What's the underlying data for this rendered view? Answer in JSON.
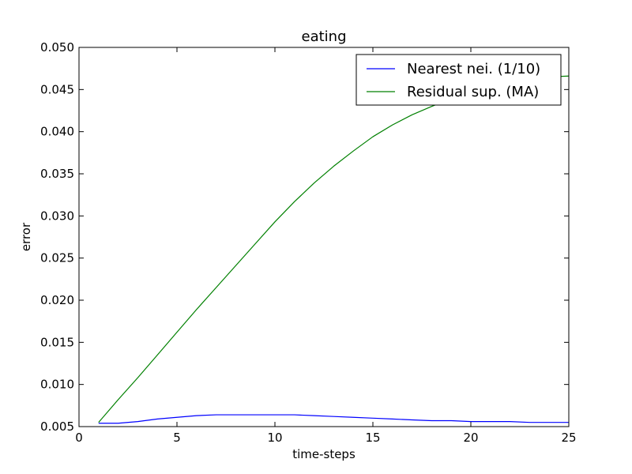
{
  "chart_data": {
    "type": "line",
    "title": "eating",
    "xlabel": "time-steps",
    "ylabel": "error",
    "xlim": [
      0,
      25
    ],
    "ylim": [
      0.005,
      0.05
    ],
    "xticks": [
      0,
      5,
      10,
      15,
      20,
      25
    ],
    "xtick_labels": [
      "0",
      "5",
      "10",
      "15",
      "20",
      "25"
    ],
    "yticks": [
      0.005,
      0.01,
      0.015,
      0.02,
      0.025,
      0.03,
      0.035,
      0.04,
      0.045,
      0.05
    ],
    "ytick_labels": [
      "0.005",
      "0.010",
      "0.015",
      "0.020",
      "0.025",
      "0.030",
      "0.035",
      "0.040",
      "0.045",
      "0.050"
    ],
    "grid": false,
    "legend_position": "top-right",
    "x": [
      1,
      2,
      3,
      4,
      5,
      6,
      7,
      8,
      9,
      10,
      11,
      12,
      13,
      14,
      15,
      16,
      17,
      18,
      19,
      20,
      21,
      22,
      23,
      24,
      25
    ],
    "series": [
      {
        "name": "Nearest nei. (1/10)",
        "color": "#0000ff",
        "values": [
          0.0054,
          0.0054,
          0.0056,
          0.0059,
          0.0061,
          0.0063,
          0.0064,
          0.0064,
          0.0064,
          0.0064,
          0.0064,
          0.0063,
          0.0062,
          0.0061,
          0.006,
          0.0059,
          0.0058,
          0.0057,
          0.0057,
          0.0056,
          0.0056,
          0.0056,
          0.0055,
          0.0055,
          0.0055
        ]
      },
      {
        "name": "Residual sup. (MA)",
        "color": "#008000",
        "values": [
          0.0055,
          0.0082,
          0.0108,
          0.0135,
          0.0162,
          0.0189,
          0.0215,
          0.0241,
          0.0267,
          0.0293,
          0.0317,
          0.0339,
          0.0359,
          0.0377,
          0.0394,
          0.0408,
          0.042,
          0.043,
          0.0439,
          0.0447,
          0.0453,
          0.0458,
          0.0462,
          0.0465,
          0.0466
        ]
      }
    ]
  }
}
